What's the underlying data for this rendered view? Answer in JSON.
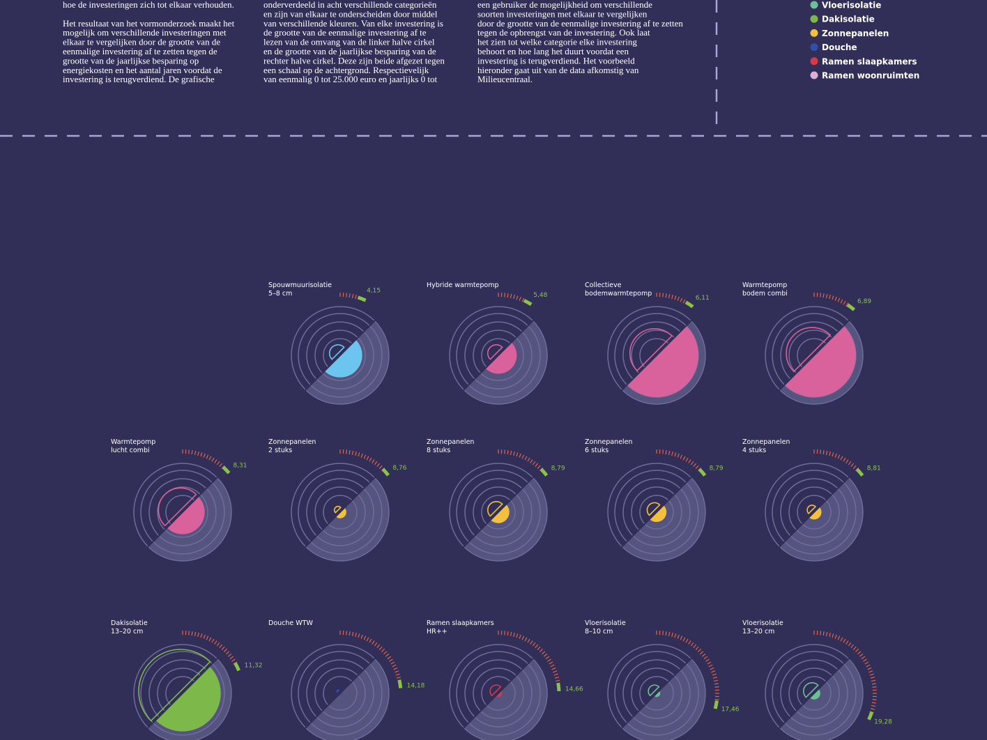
{
  "intro": {
    "columns": [
      [
        "hoe de investeringen zich tot elkaar verhouden.",
        "",
        "Het resultaat van het vormonderzoek maakt het",
        "mogelijk om verschillende investeringen met",
        "elkaar te vergelijken door de grootte van de",
        "eenmalige investering af te zetten tegen de",
        "grootte van de jaarlijkse besparing op",
        "energiekosten en het aantal jaren voordat de",
        "investering is terugverdiend. De grafische"
      ],
      [
        "onderverdeeld in acht verschillende categorieën",
        "en zijn van elkaar te onderscheiden door middel",
        "van verschillende kleuren. Van elke investering is",
        "de grootte van de eenmalige investering af te",
        "lezen van de omvang van de linker halve cirkel",
        "en de grootte van de jaarlijkse besparing van de",
        "rechter halve cirkel. Deze zijn beide afgezet tegen",
        "een schaal op de achtergrond. Respectievelijk",
        "van eenmalig 0 tot 25.000 euro en jaarlijks 0 tot"
      ],
      [
        "een gebruiker de mogelijkheid om verschillende",
        "soorten investeringen met elkaar te vergelijken",
        "door de grootte van de eenmalige investering af te zetten",
        "tegen de opbrengst van de investering. Ook laat",
        "het zien tot welke categorie elke investering",
        "behoort en hoe lang het duurt voordat een",
        "investering is terugverdiend. Het voorbeeld",
        "hieronder gaat uit van de data afkomstig van",
        "Milieucentraal."
      ]
    ]
  },
  "legend": [
    {
      "label": "Vloerisolatie",
      "color": "#6dbf96"
    },
    {
      "label": "Dakisolatie",
      "color": "#7cb84a"
    },
    {
      "label": "Zonnepanelen",
      "color": "#f2bf3e"
    },
    {
      "label": "Douche",
      "color": "#2f4fa8"
    },
    {
      "label": "Ramen slaapkamers",
      "color": "#d9384a"
    },
    {
      "label": "Ramen woonruimten",
      "color": "#dcb0d6"
    }
  ],
  "scale": {
    "investment_max": 25000,
    "saving_max": 2500,
    "years_max": 30
  },
  "glyphs": [
    {
      "title": [
        "Spouwmuurisolatie",
        "5–8 cm"
      ],
      "investment": 5100,
      "saving": 1320,
      "payback": 4.15,
      "payback_label": "4,15",
      "color": "#6cc5ef"
    },
    {
      "title": [
        "Hybride warmtepomp"
      ],
      "investment": 5100,
      "saving": 1100,
      "payback": 5.48,
      "payback_label": "5,48",
      "color": "#d9629c"
    },
    {
      "title": [
        "Collectieve",
        "bodemwarmtepomp"
      ],
      "investment": 14700,
      "saving": 2500,
      "payback": 6.11,
      "payback_label": "6,11",
      "color": "#d9629c"
    },
    {
      "title": [
        "Warmtepomp",
        "bodem combi"
      ],
      "investment": 15400,
      "saving": 2500,
      "payback": 6.89,
      "payback_label": "6,89",
      "color": "#d9629c"
    },
    {
      "title": [
        "Warmtepomp",
        "lucht combi"
      ],
      "investment": 13200,
      "saving": 1320,
      "payback": 8.31,
      "payback_label": "8,31",
      "color": "#d9629c"
    },
    {
      "title": [
        "Zonnepanelen",
        "2 stuks"
      ],
      "investment": 2200,
      "saving": 370,
      "payback": 8.76,
      "payback_label": "8,76",
      "color": "#f2bf3e"
    },
    {
      "title": [
        "Zonnepanelen",
        "8 stuks"
      ],
      "investment": 5100,
      "saving": 660,
      "payback": 8.79,
      "payback_label": "8,79",
      "color": "#f2bf3e"
    },
    {
      "title": [
        "Zonnepanelen",
        "6 stuks"
      ],
      "investment": 4400,
      "saving": 590,
      "payback": 8.79,
      "payback_label": "8,79",
      "color": "#f2bf3e"
    },
    {
      "title": [
        "Zonnepanelen",
        "4 stuks"
      ],
      "investment": 2900,
      "saving": 440,
      "payback": 8.81,
      "payback_label": "8,81",
      "color": "#f2bf3e"
    },
    {
      "title": [
        "Dakisolatie",
        "13–20 cm"
      ],
      "investment": 25000,
      "saving": 2280,
      "payback": 11.32,
      "payback_label": "11,32",
      "color": "#7cb84a"
    },
    {
      "title": [
        "Douche WTW"
      ],
      "investment": 700,
      "saving": 110,
      "payback": 14.18,
      "payback_label": "14,18",
      "color": "#2f4fa8"
    },
    {
      "title": [
        "Ramen slaapkamers",
        "HR++"
      ],
      "investment": 3700,
      "saving": 220,
      "payback": 14.66,
      "payback_label": "14,66",
      "color": "#d9384a"
    },
    {
      "title": [
        "Vloerisolatie",
        "8–10 cm"
      ],
      "investment": 3700,
      "saving": 220,
      "payback": 17.46,
      "payback_label": "17,46",
      "color": "#6dbf96"
    },
    {
      "title": [
        "Vloerisolatie",
        "13–20 cm"
      ],
      "investment": 5100,
      "saving": 370,
      "payback": 19.28,
      "payback_label": "19,28",
      "color": "#6dbf96"
    }
  ]
}
